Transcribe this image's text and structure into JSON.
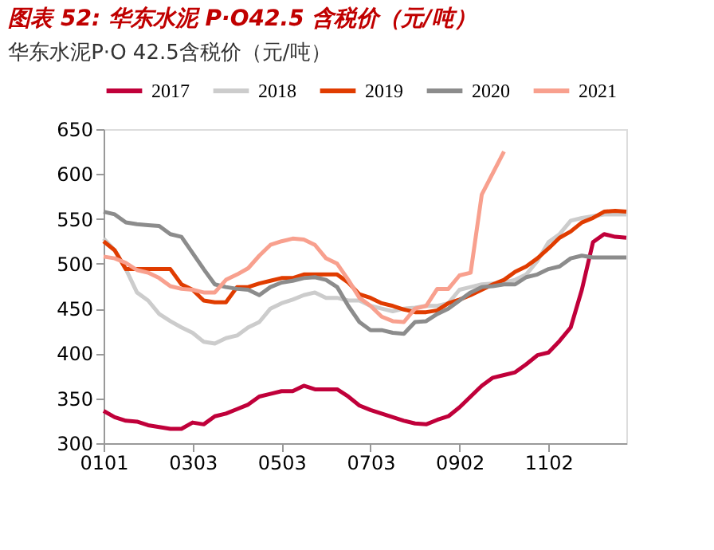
{
  "chart_data": {
    "type": "line",
    "title": "图表 52: 华东水泥 P·O42.5 含税价（元/吨）",
    "subtitle": "华东水泥P·O 42.5含税价（元/吨）",
    "categories": [
      "0101",
      null,
      null,
      null,
      null,
      null,
      null,
      null,
      "0303",
      null,
      null,
      null,
      null,
      null,
      null,
      null,
      "0503",
      null,
      null,
      null,
      null,
      null,
      null,
      null,
      "0703",
      null,
      null,
      null,
      null,
      null,
      null,
      null,
      "0902",
      null,
      null,
      null,
      null,
      null,
      null,
      null,
      "1102",
      null,
      null,
      null,
      null,
      null,
      null,
      null
    ],
    "series": [
      {
        "name": "2017",
        "color": "#c0003a",
        "values": [
          336,
          329,
          325,
          324,
          320,
          318,
          316,
          316,
          323,
          321,
          330,
          333,
          338,
          343,
          352,
          355,
          358,
          358,
          364,
          360,
          360,
          360,
          352,
          342,
          337,
          333,
          329,
          325,
          322,
          321,
          326,
          330,
          340,
          352,
          364,
          373,
          376,
          379,
          388,
          398,
          401,
          414,
          429,
          471,
          524,
          533,
          530,
          529
        ]
      },
      {
        "name": "2018",
        "color": "#cccccc",
        "values": [
          528,
          515,
          494,
          468,
          459,
          444,
          436,
          429,
          423,
          413,
          411,
          417,
          420,
          429,
          435,
          450,
          456,
          460,
          465,
          468,
          462,
          462,
          459,
          459,
          453,
          450,
          447,
          450,
          451,
          453,
          453,
          456,
          471,
          474,
          477,
          478,
          479,
          482,
          488,
          503,
          524,
          533,
          548,
          551,
          553,
          555,
          555,
          555
        ]
      },
      {
        "name": "2019",
        "color": "#e03c00",
        "values": [
          525,
          515,
          494,
          494,
          494,
          494,
          494,
          477,
          471,
          459,
          457,
          457,
          474,
          474,
          478,
          481,
          484,
          484,
          488,
          488,
          488,
          488,
          479,
          466,
          462,
          456,
          453,
          449,
          446,
          446,
          448,
          456,
          460,
          465,
          471,
          477,
          482,
          491,
          497,
          506,
          517,
          529,
          536,
          546,
          551,
          558,
          559,
          558
        ]
      },
      {
        "name": "2020",
        "color": "#8c8c8c",
        "values": [
          558,
          555,
          546,
          544,
          543,
          542,
          533,
          530,
          512,
          494,
          477,
          474,
          472,
          471,
          465,
          474,
          479,
          481,
          484,
          485,
          482,
          474,
          453,
          435,
          426,
          426,
          423,
          422,
          435,
          436,
          444,
          450,
          459,
          468,
          474,
          475,
          477,
          477,
          485,
          488,
          494,
          497,
          506,
          509,
          507,
          507,
          507,
          507
        ]
      },
      {
        "name": "2021",
        "color": "#f8a08e",
        "values": [
          508,
          506,
          501,
          493,
          490,
          484,
          475,
          472,
          471,
          468,
          468,
          482,
          488,
          495,
          509,
          521,
          525,
          528,
          527,
          521,
          506,
          500,
          482,
          462,
          453,
          441,
          436,
          435,
          450,
          453,
          472,
          472,
          487,
          490,
          577,
          601,
          625,
          null,
          null,
          null,
          null,
          null,
          null,
          null,
          null,
          null,
          null,
          null
        ]
      }
    ],
    "ylim": [
      300,
      650
    ],
    "yticks": [
      300,
      350,
      400,
      450,
      500,
      550,
      600,
      650
    ],
    "grid": false,
    "legend": "top",
    "line_style": "solid",
    "marker": "none"
  }
}
